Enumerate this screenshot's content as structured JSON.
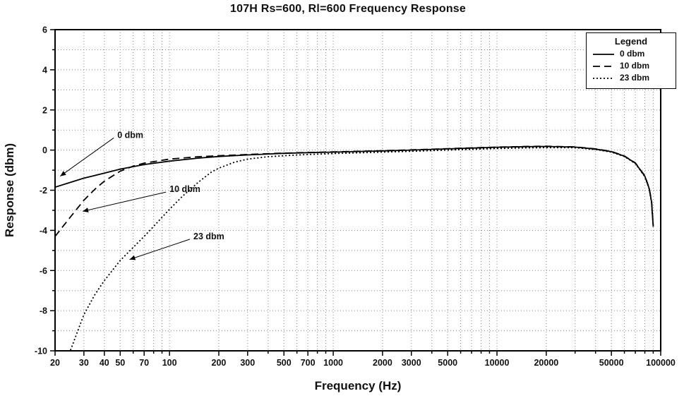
{
  "chart_data": {
    "type": "line",
    "title": "107H Rs=600, Rl=600 Frequency Response",
    "xlabel": "Frequency (Hz)",
    "ylabel": "Response (dbm)",
    "x_scale": "log",
    "xlim": [
      20,
      100000
    ],
    "ylim": [
      -10,
      6
    ],
    "grid": "dotted",
    "y_major_tick_labels": [
      6,
      4,
      2,
      0,
      -2,
      -4,
      -6,
      -8,
      -10
    ],
    "x_tick_labels": [
      20,
      30,
      40,
      50,
      70,
      100,
      200,
      300,
      500,
      700,
      1000,
      2000,
      3000,
      5000,
      10000,
      20000,
      50000,
      100000
    ],
    "legend": {
      "title": "Legend",
      "position": "top-right",
      "entries": [
        {
          "label": "0 dbm",
          "style": "solid"
        },
        {
          "label": "10 dbm",
          "style": "dashed"
        },
        {
          "label": "23 dbm",
          "style": "dotted"
        }
      ]
    },
    "series": [
      {
        "name": "0 dbm",
        "style": "solid",
        "color": "#000000",
        "points": [
          [
            20,
            -1.85
          ],
          [
            25,
            -1.6
          ],
          [
            30,
            -1.4
          ],
          [
            40,
            -1.15
          ],
          [
            50,
            -0.95
          ],
          [
            70,
            -0.72
          ],
          [
            100,
            -0.55
          ],
          [
            150,
            -0.4
          ],
          [
            200,
            -0.32
          ],
          [
            300,
            -0.24
          ],
          [
            500,
            -0.16
          ],
          [
            700,
            -0.13
          ],
          [
            1000,
            -0.1
          ],
          [
            2000,
            -0.04
          ],
          [
            3000,
            0.0
          ],
          [
            5000,
            0.06
          ],
          [
            7000,
            0.1
          ],
          [
            10000,
            0.14
          ],
          [
            15000,
            0.17
          ],
          [
            20000,
            0.18
          ],
          [
            30000,
            0.15
          ],
          [
            40000,
            0.05
          ],
          [
            50000,
            -0.08
          ],
          [
            60000,
            -0.3
          ],
          [
            70000,
            -0.65
          ],
          [
            80000,
            -1.3
          ],
          [
            85000,
            -1.9
          ],
          [
            88000,
            -2.6
          ],
          [
            90000,
            -3.8
          ]
        ]
      },
      {
        "name": "10 dbm",
        "style": "dashed",
        "color": "#000000",
        "points": [
          [
            20,
            -4.3
          ],
          [
            25,
            -3.3
          ],
          [
            30,
            -2.5
          ],
          [
            35,
            -1.95
          ],
          [
            40,
            -1.55
          ],
          [
            50,
            -1.05
          ],
          [
            60,
            -0.8
          ],
          [
            70,
            -0.65
          ],
          [
            100,
            -0.45
          ],
          [
            150,
            -0.33
          ],
          [
            200,
            -0.28
          ],
          [
            300,
            -0.22
          ],
          [
            500,
            -0.15
          ],
          [
            700,
            -0.12
          ],
          [
            1000,
            -0.09
          ],
          [
            2000,
            -0.03
          ],
          [
            3000,
            0.01
          ],
          [
            5000,
            0.07
          ],
          [
            7000,
            0.11
          ],
          [
            10000,
            0.15
          ],
          [
            15000,
            0.18
          ],
          [
            20000,
            0.19
          ],
          [
            30000,
            0.16
          ],
          [
            40000,
            0.06
          ],
          [
            50000,
            -0.07
          ],
          [
            60000,
            -0.29
          ],
          [
            70000,
            -0.64
          ],
          [
            80000,
            -1.28
          ],
          [
            85000,
            -1.88
          ],
          [
            88000,
            -2.55
          ],
          [
            90000,
            -3.75
          ]
        ]
      },
      {
        "name": "23 dbm",
        "style": "dotted",
        "color": "#000000",
        "points": [
          [
            24,
            -10.3
          ],
          [
            30,
            -8.2
          ],
          [
            35,
            -7.2
          ],
          [
            40,
            -6.5
          ],
          [
            50,
            -5.5
          ],
          [
            60,
            -4.85
          ],
          [
            70,
            -4.3
          ],
          [
            80,
            -3.8
          ],
          [
            90,
            -3.35
          ],
          [
            100,
            -2.95
          ],
          [
            120,
            -2.3
          ],
          [
            150,
            -1.6
          ],
          [
            180,
            -1.1
          ],
          [
            200,
            -0.9
          ],
          [
            250,
            -0.6
          ],
          [
            300,
            -0.45
          ],
          [
            400,
            -0.33
          ],
          [
            500,
            -0.28
          ],
          [
            700,
            -0.22
          ],
          [
            1000,
            -0.17
          ],
          [
            2000,
            -0.1
          ],
          [
            3000,
            -0.06
          ],
          [
            5000,
            0.0
          ],
          [
            7000,
            0.04
          ],
          [
            10000,
            0.08
          ],
          [
            15000,
            0.11
          ],
          [
            20000,
            0.12
          ],
          [
            30000,
            0.12
          ],
          [
            40000,
            0.03
          ],
          [
            50000,
            -0.1
          ],
          [
            60000,
            -0.32
          ],
          [
            70000,
            -0.67
          ],
          [
            80000,
            -1.32
          ],
          [
            85000,
            -1.92
          ],
          [
            88000,
            -2.62
          ],
          [
            90000,
            -3.82
          ]
        ]
      }
    ],
    "annotations": [
      {
        "text": "0 dbm",
        "label_at": [
          48,
          0.75
        ],
        "arrow_to": [
          21.5,
          -1.3
        ]
      },
      {
        "text": "10 dbm",
        "label_at": [
          100,
          -1.95
        ],
        "arrow_to": [
          29.5,
          -3.05
        ]
      },
      {
        "text": "23 dbm",
        "label_at": [
          140,
          -4.3
        ],
        "arrow_to": [
          57,
          -5.45
        ]
      }
    ]
  }
}
